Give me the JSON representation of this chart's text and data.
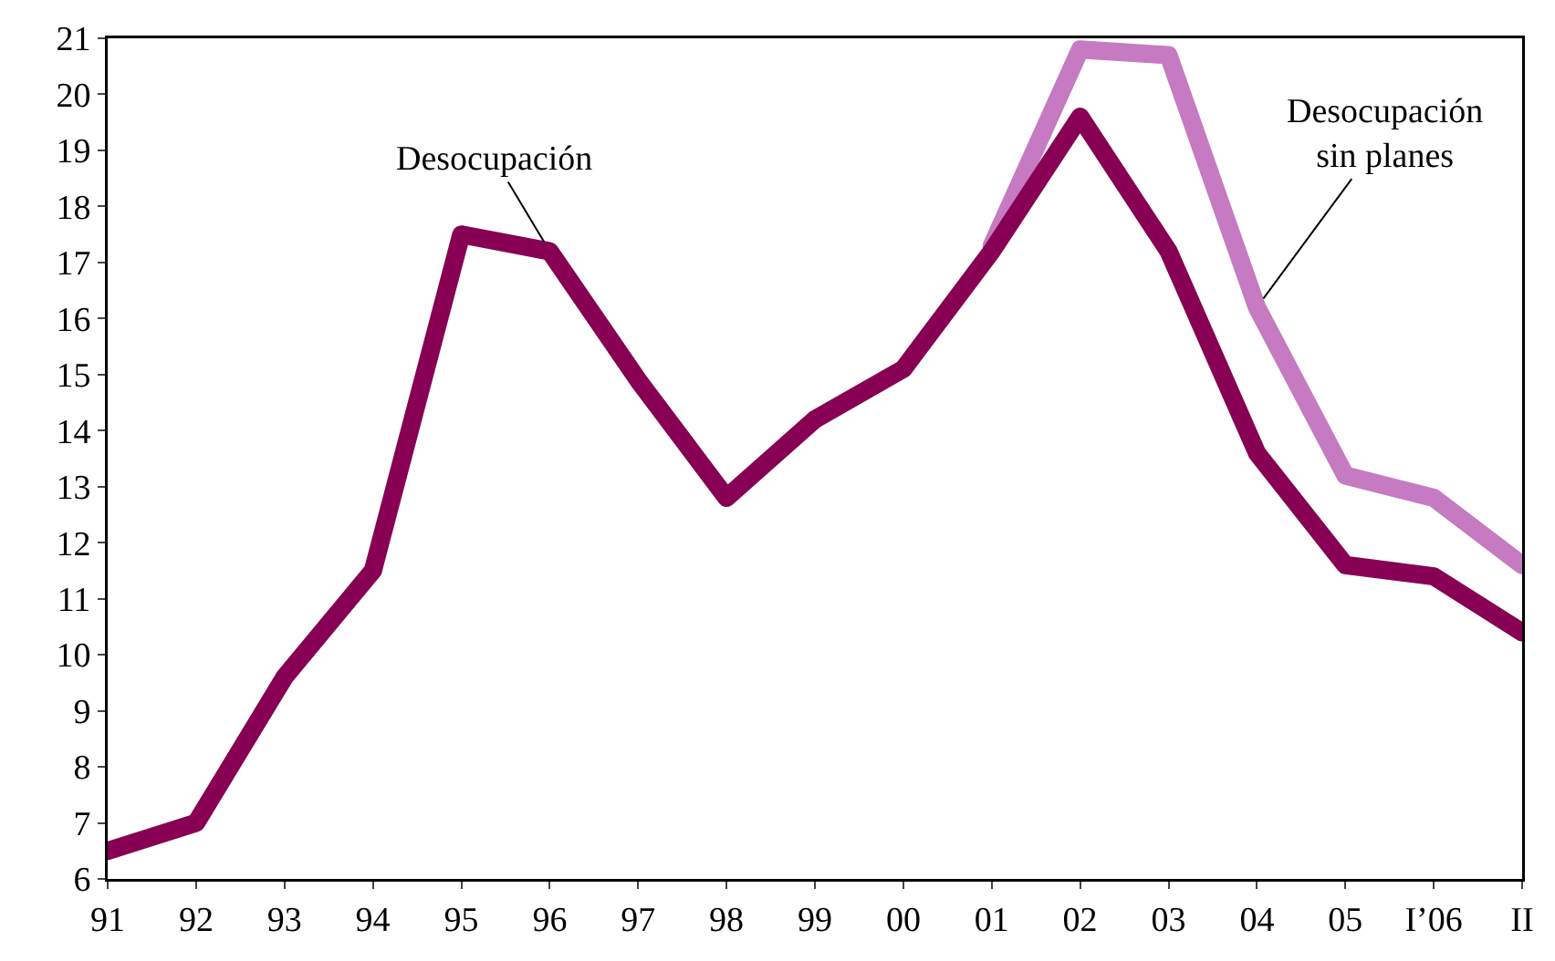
{
  "chart_data": {
    "type": "line",
    "categories": [
      "91",
      "92",
      "93",
      "94",
      "95",
      "96",
      "97",
      "98",
      "99",
      "00",
      "01",
      "02",
      "03",
      "04",
      "05",
      "I’06",
      "II"
    ],
    "series": [
      {
        "name": "Desocupación sin planes",
        "color": "#c57ac2",
        "values": [
          null,
          null,
          null,
          null,
          null,
          null,
          null,
          null,
          null,
          null,
          17.3,
          20.8,
          20.7,
          16.2,
          13.2,
          12.8,
          11.6
        ]
      },
      {
        "name": "Desocupación",
        "color": "#870054",
        "values": [
          6.5,
          7.0,
          9.6,
          11.5,
          17.5,
          17.2,
          14.9,
          12.8,
          14.2,
          15.1,
          17.2,
          19.6,
          17.2,
          13.6,
          11.6,
          11.4,
          10.4
        ]
      }
    ],
    "ylim": [
      6,
      21
    ],
    "yticks": [
      6,
      7,
      8,
      9,
      10,
      11,
      12,
      13,
      14,
      15,
      16,
      17,
      18,
      19,
      20,
      21
    ],
    "grid": false,
    "legend": false,
    "marker": "none",
    "line_style": "solid"
  }
}
